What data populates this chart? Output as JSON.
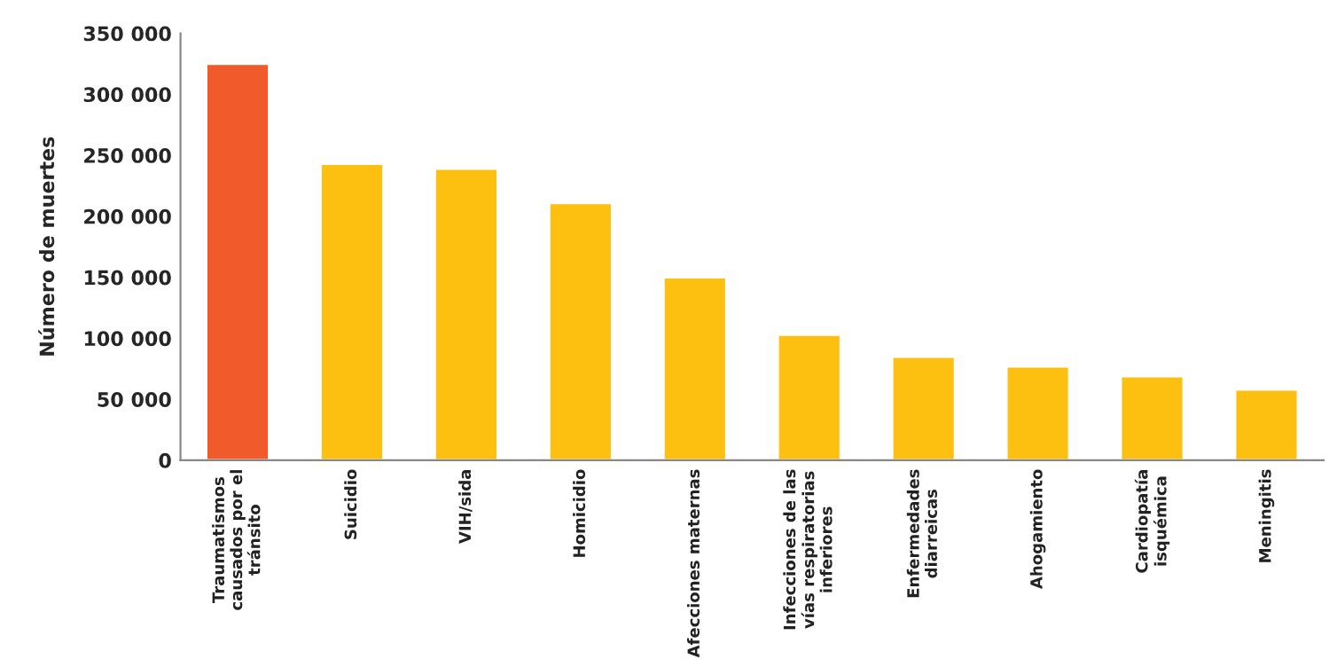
{
  "chart_data": {
    "type": "bar",
    "ylabel": "Número de muertes",
    "categories": [
      "Traumatismos\ncausados por el\ntránsito",
      "Suicidio",
      "VIH/sida",
      "Homicidio",
      "Afecciones maternas",
      "Infecciones de las\nvías respiratorias\ninferiores",
      "Enfermedades\ndiarreicas",
      "Ahogamiento",
      "Cardiopatía\nisquémica",
      "Meningitis"
    ],
    "values": [
      325000,
      243000,
      239000,
      211000,
      150000,
      103000,
      85000,
      77000,
      69000,
      58000
    ],
    "colors": [
      "#f15a2b",
      "#fdc010",
      "#fdc010",
      "#fdc010",
      "#fdc010",
      "#fdc010",
      "#fdc010",
      "#fdc010",
      "#fdc010",
      "#fdc010"
    ],
    "ylim": [
      0,
      350000
    ],
    "yticks": [
      0,
      {
        "value": 50000,
        "label": "50 000"
      },
      {
        "value": 100000,
        "label": "100 000"
      },
      {
        "value": 150000,
        "label": "150 000"
      },
      {
        "value": 200000,
        "label": "200 000"
      },
      {
        "value": 250000,
        "label": "250 000"
      },
      {
        "value": 300000,
        "label": "300 000"
      },
      {
        "value": 350000,
        "label": "350 000"
      }
    ],
    "grid": false,
    "legend": false
  }
}
